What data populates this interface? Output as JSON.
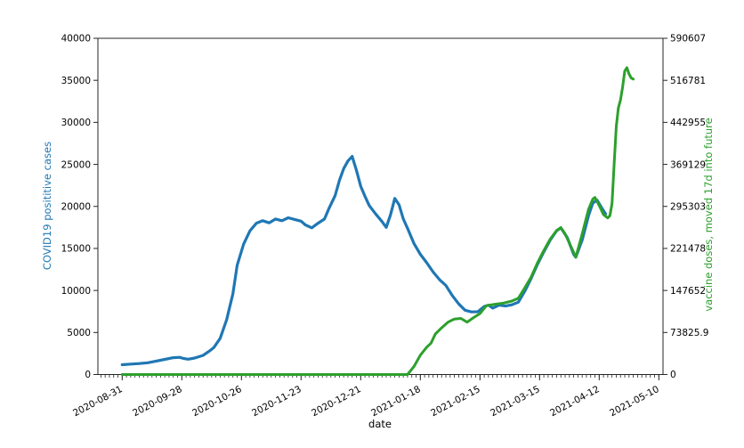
{
  "chart_data": {
    "type": "line",
    "title": "",
    "xlabel": "date",
    "ylabel_left": "COVID19 posititive cases",
    "ylabel_right": "vaccine doses, moved 17d into future",
    "grid": false,
    "legend": "none",
    "x_axis": {
      "tick_labels": [
        "2020-08-31",
        "2020-09-28",
        "2020-10-26",
        "2020-11-23",
        "2020-12-21",
        "2021-01-18",
        "2021-02-15",
        "2021-03-15",
        "2021-04-12",
        "2021-05-10"
      ],
      "tick_interval_days": 28,
      "minor_tick_interval_days": 2
    },
    "left_axis": {
      "color": "#1f77b4",
      "lim": [
        0,
        40000
      ],
      "tick_labels": [
        "0",
        "5000",
        "10000",
        "15000",
        "20000",
        "25000",
        "30000",
        "35000",
        "40000"
      ]
    },
    "right_axis": {
      "color": "#2ca02c",
      "lim": [
        0,
        590607
      ],
      "tick_labels": [
        "0",
        "73825.9",
        "147652",
        "221478",
        "295303",
        "369129",
        "442955",
        "516781",
        "590607"
      ]
    },
    "series": [
      {
        "name": "COVID19 posititive cases",
        "axis": "left",
        "color": "#1f77b4",
        "points": [
          [
            "2020-08-31",
            1170
          ],
          [
            "2020-09-04",
            1240
          ],
          [
            "2020-09-08",
            1300
          ],
          [
            "2020-09-12",
            1400
          ],
          [
            "2020-09-16",
            1600
          ],
          [
            "2020-09-20",
            1800
          ],
          [
            "2020-09-24",
            2000
          ],
          [
            "2020-09-27",
            2050
          ],
          [
            "2020-09-29",
            1900
          ],
          [
            "2020-10-01",
            1820
          ],
          [
            "2020-10-04",
            1960
          ],
          [
            "2020-10-08",
            2280
          ],
          [
            "2020-10-11",
            2800
          ],
          [
            "2020-10-13",
            3200
          ],
          [
            "2020-10-16",
            4300
          ],
          [
            "2020-10-19",
            6500
          ],
          [
            "2020-10-22",
            9600
          ],
          [
            "2020-10-24",
            13000
          ],
          [
            "2020-10-27",
            15500
          ],
          [
            "2020-10-30",
            17100
          ],
          [
            "2020-11-02",
            18000
          ],
          [
            "2020-11-05",
            18300
          ],
          [
            "2020-11-08",
            18050
          ],
          [
            "2020-11-11",
            18500
          ],
          [
            "2020-11-14",
            18300
          ],
          [
            "2020-11-17",
            18650
          ],
          [
            "2020-11-20",
            18450
          ],
          [
            "2020-11-23",
            18250
          ],
          [
            "2020-11-25",
            17800
          ],
          [
            "2020-11-28",
            17450
          ],
          [
            "2020-12-01",
            18000
          ],
          [
            "2020-12-04",
            18500
          ],
          [
            "2020-12-06",
            19700
          ],
          [
            "2020-12-09",
            21300
          ],
          [
            "2020-12-11",
            23100
          ],
          [
            "2020-12-13",
            24500
          ],
          [
            "2020-12-15",
            25400
          ],
          [
            "2020-12-17",
            25950
          ],
          [
            "2020-12-19",
            24300
          ],
          [
            "2020-12-21",
            22400
          ],
          [
            "2020-12-23",
            21200
          ],
          [
            "2020-12-25",
            20100
          ],
          [
            "2020-12-28",
            19100
          ],
          [
            "2020-12-31",
            18200
          ],
          [
            "2021-01-02",
            17500
          ],
          [
            "2021-01-04",
            19000
          ],
          [
            "2021-01-06",
            20950
          ],
          [
            "2021-01-08",
            20200
          ],
          [
            "2021-01-10",
            18500
          ],
          [
            "2021-01-12",
            17400
          ],
          [
            "2021-01-15",
            15600
          ],
          [
            "2021-01-18",
            14300
          ],
          [
            "2021-01-21",
            13300
          ],
          [
            "2021-01-24",
            12200
          ],
          [
            "2021-01-27",
            11300
          ],
          [
            "2021-01-30",
            10600
          ],
          [
            "2021-02-02",
            9400
          ],
          [
            "2021-02-05",
            8400
          ],
          [
            "2021-02-08",
            7650
          ],
          [
            "2021-02-11",
            7450
          ],
          [
            "2021-02-14",
            7470
          ],
          [
            "2021-02-17",
            8100
          ],
          [
            "2021-02-19",
            8250
          ],
          [
            "2021-02-21",
            7900
          ],
          [
            "2021-02-24",
            8250
          ],
          [
            "2021-02-27",
            8150
          ],
          [
            "2021-03-02",
            8300
          ],
          [
            "2021-03-05",
            8600
          ],
          [
            "2021-03-08",
            9900
          ],
          [
            "2021-03-11",
            11400
          ],
          [
            "2021-03-14",
            13100
          ],
          [
            "2021-03-17",
            14600
          ],
          [
            "2021-03-20",
            16000
          ],
          [
            "2021-03-23",
            17100
          ],
          [
            "2021-03-25",
            17450
          ],
          [
            "2021-03-28",
            16300
          ],
          [
            "2021-03-31",
            14300
          ],
          [
            "2021-04-01",
            13950
          ],
          [
            "2021-04-04",
            16000
          ],
          [
            "2021-04-07",
            18900
          ],
          [
            "2021-04-09",
            20400
          ],
          [
            "2021-04-11",
            20750
          ],
          [
            "2021-04-13",
            19900
          ],
          [
            "2021-04-15",
            19100
          ]
        ]
      },
      {
        "name": "vaccine doses, moved 17d into future",
        "axis": "right",
        "color": "#2ca02c",
        "points": [
          [
            "2020-08-31",
            0
          ],
          [
            "2021-01-12",
            0
          ],
          [
            "2021-01-15",
            14000
          ],
          [
            "2021-01-18",
            34000
          ],
          [
            "2021-01-21",
            48000
          ],
          [
            "2021-01-23",
            55000
          ],
          [
            "2021-01-25",
            71000
          ],
          [
            "2021-01-28",
            82000
          ],
          [
            "2021-01-31",
            92000
          ],
          [
            "2021-02-03",
            97500
          ],
          [
            "2021-02-06",
            98500
          ],
          [
            "2021-02-09",
            92000
          ],
          [
            "2021-02-12",
            100000
          ],
          [
            "2021-02-15",
            107000
          ],
          [
            "2021-02-18",
            121000
          ],
          [
            "2021-02-22",
            123500
          ],
          [
            "2021-02-26",
            125500
          ],
          [
            "2021-03-02",
            129000
          ],
          [
            "2021-03-05",
            134000
          ],
          [
            "2021-03-08",
            152000
          ],
          [
            "2021-03-11",
            171000
          ],
          [
            "2021-03-14",
            196000
          ],
          [
            "2021-03-17",
            218000
          ],
          [
            "2021-03-20",
            238000
          ],
          [
            "2021-03-23",
            253000
          ],
          [
            "2021-03-25",
            258000
          ],
          [
            "2021-03-27",
            247000
          ],
          [
            "2021-03-29",
            231000
          ],
          [
            "2021-04-01",
            206000
          ],
          [
            "2021-04-04",
            247000
          ],
          [
            "2021-04-07",
            290000
          ],
          [
            "2021-04-09",
            308000
          ],
          [
            "2021-04-10",
            311000
          ],
          [
            "2021-04-12",
            297000
          ],
          [
            "2021-04-14",
            281000
          ],
          [
            "2021-04-16",
            275000
          ],
          [
            "2021-04-17",
            279000
          ],
          [
            "2021-04-18",
            300000
          ],
          [
            "2021-04-19",
            370000
          ],
          [
            "2021-04-20",
            436000
          ],
          [
            "2021-04-21",
            468000
          ],
          [
            "2021-04-22",
            482000
          ],
          [
            "2021-04-23",
            505000
          ],
          [
            "2021-04-24",
            533000
          ],
          [
            "2021-04-25",
            539000
          ],
          [
            "2021-04-26",
            528000
          ],
          [
            "2021-04-27",
            521000
          ],
          [
            "2021-04-28",
            519000
          ]
        ]
      }
    ]
  }
}
